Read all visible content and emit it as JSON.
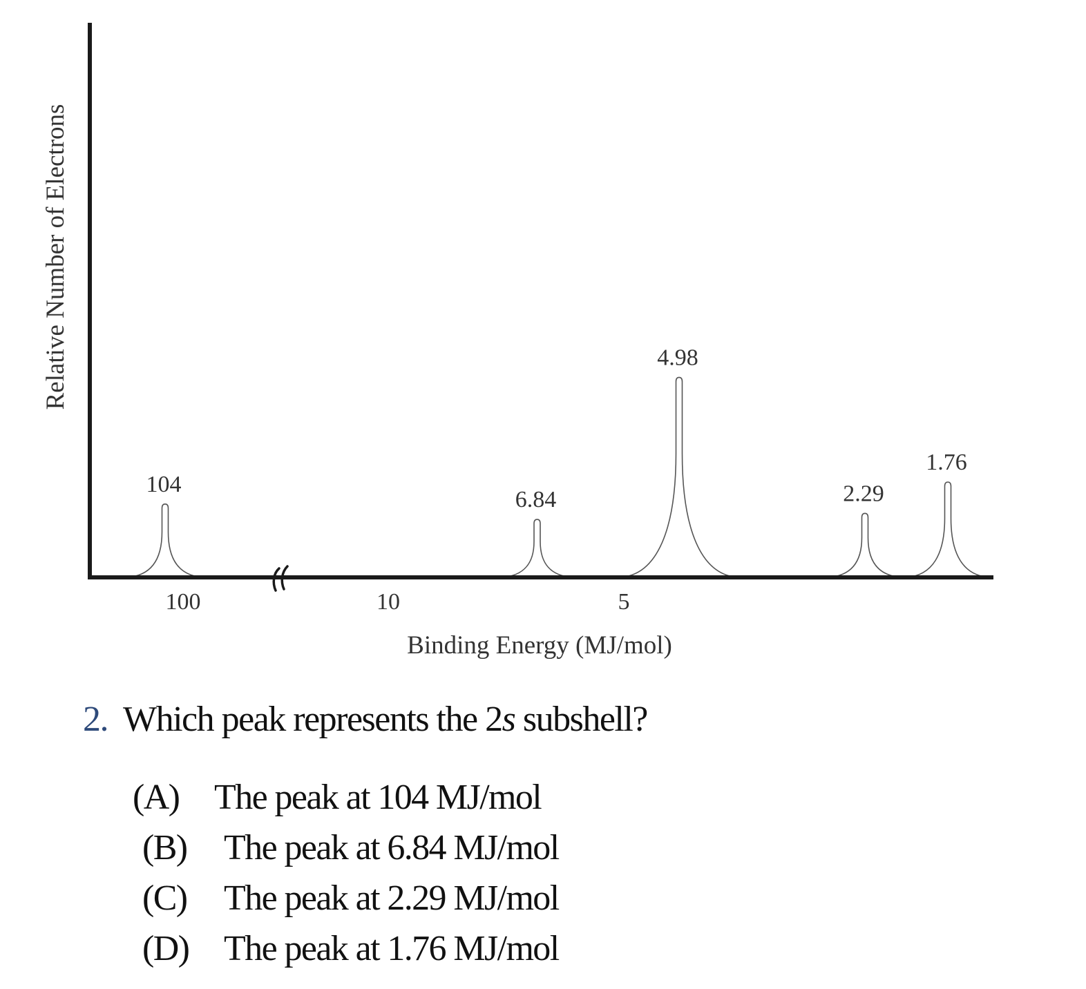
{
  "chart_data": {
    "type": "line",
    "subtype": "photoelectron-spectrum",
    "title": "",
    "xlabel": "Binding Energy (MJ/mol)",
    "ylabel": "Relative Number of Electrons",
    "x_axis_reversed": true,
    "x_axis_break": true,
    "x_ticks": [
      {
        "value": 100,
        "label": "100"
      },
      {
        "value": 10,
        "label": "10"
      },
      {
        "value": 5,
        "label": "5"
      }
    ],
    "y_ticks": [],
    "grid": false,
    "legend": null,
    "peaks": [
      {
        "binding_energy": 104,
        "label": "104",
        "relative_height": 1.1
      },
      {
        "binding_energy": 6.84,
        "label": "6.84",
        "relative_height": 0.87
      },
      {
        "binding_energy": 4.98,
        "label": "4.98",
        "relative_height": 3.0
      },
      {
        "binding_energy": 2.29,
        "label": "2.29",
        "relative_height": 0.96
      },
      {
        "binding_energy": 1.76,
        "label": "1.76",
        "relative_height": 1.43
      }
    ],
    "ylim": [
      0,
      8.3
    ]
  },
  "question": {
    "number": "2.",
    "text_before": "Which peak represents the 2",
    "text_italic": "s",
    "text_after": " subshell?",
    "choices": [
      {
        "letter": "(A)",
        "text": "The peak at 104 MJ/mol"
      },
      {
        "letter": "(B)",
        "text": "The peak at 6.84 MJ/mol"
      },
      {
        "letter": "(C)",
        "text": "The peak at 2.29 MJ/mol"
      },
      {
        "letter": "(D)",
        "text": "The peak at 1.76 MJ/mol"
      }
    ]
  }
}
